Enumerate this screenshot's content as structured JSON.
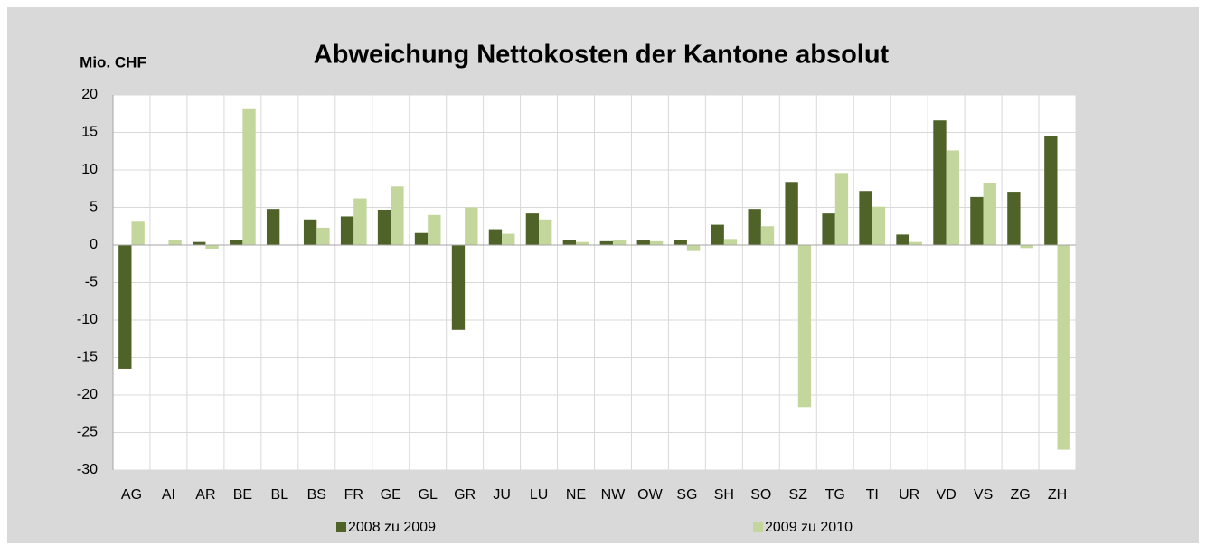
{
  "chart_data": {
    "type": "bar",
    "title": "Abweichung Nettokosten der Kantone absolut",
    "y_label": "Mio. CHF",
    "categories": [
      "AG",
      "AI",
      "AR",
      "BE",
      "BL",
      "BS",
      "FR",
      "GE",
      "GL",
      "GR",
      "JU",
      "LU",
      "NE",
      "NW",
      "OW",
      "SG",
      "SH",
      "SO",
      "SZ",
      "TG",
      "TI",
      "UR",
      "VD",
      "VS",
      "ZG",
      "ZH"
    ],
    "series": [
      {
        "name": "2008 zu 2009",
        "color": "#4f6228",
        "values": [
          -16.5,
          0,
          0.4,
          0.7,
          4.8,
          3.4,
          3.8,
          4.7,
          1.6,
          -11.3,
          2.1,
          4.2,
          0.7,
          0.5,
          0.6,
          0.7,
          2.7,
          4.8,
          8.4,
          4.2,
          7.2,
          1.4,
          16.6,
          6.4,
          7.1,
          14.5
        ]
      },
      {
        "name": "2009 zu 2010",
        "color": "#c3d69b",
        "values": [
          3.1,
          0.6,
          -0.5,
          18.1,
          0,
          2.3,
          6.2,
          7.8,
          4.0,
          5.0,
          1.5,
          3.4,
          0.4,
          0.7,
          0.5,
          -0.8,
          0.8,
          2.5,
          -21.6,
          9.6,
          5.1,
          0.4,
          12.6,
          8.3,
          -0.4,
          -27.3
        ]
      }
    ],
    "ylim": [
      -30,
      20
    ],
    "yticks": [
      -30,
      -25,
      -20,
      -15,
      -10,
      -5,
      0,
      5,
      10,
      15,
      20
    ],
    "grid": true,
    "legend": "bottom"
  }
}
